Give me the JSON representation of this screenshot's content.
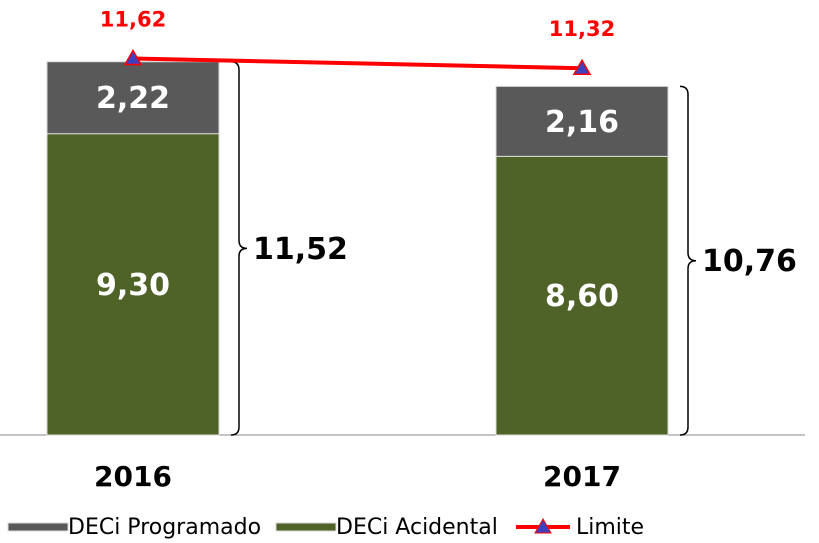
{
  "chart_data": {
    "type": "bar",
    "categories": [
      "2016",
      "2017"
    ],
    "series": [
      {
        "name": "DECi Programado",
        "type": "bar",
        "color": "#595959",
        "values": [
          2.22,
          2.16
        ],
        "value_labels": [
          "2,22",
          "2,16"
        ]
      },
      {
        "name": "DECi Acidental",
        "type": "bar",
        "color": "#4f6228",
        "values": [
          9.3,
          8.6
        ],
        "value_labels": [
          "9,30",
          "8,60"
        ]
      },
      {
        "name": "Limite",
        "type": "line",
        "color": "#ff0000",
        "marker_color": "#3f3fbf",
        "values": [
          11.62,
          11.32
        ],
        "value_labels": [
          "11,62",
          "11,32"
        ]
      }
    ],
    "totals": {
      "values": [
        11.52,
        10.76
      ],
      "value_labels": [
        "11,52",
        "10,76"
      ]
    },
    "stacked": true,
    "legend": "bottom"
  }
}
